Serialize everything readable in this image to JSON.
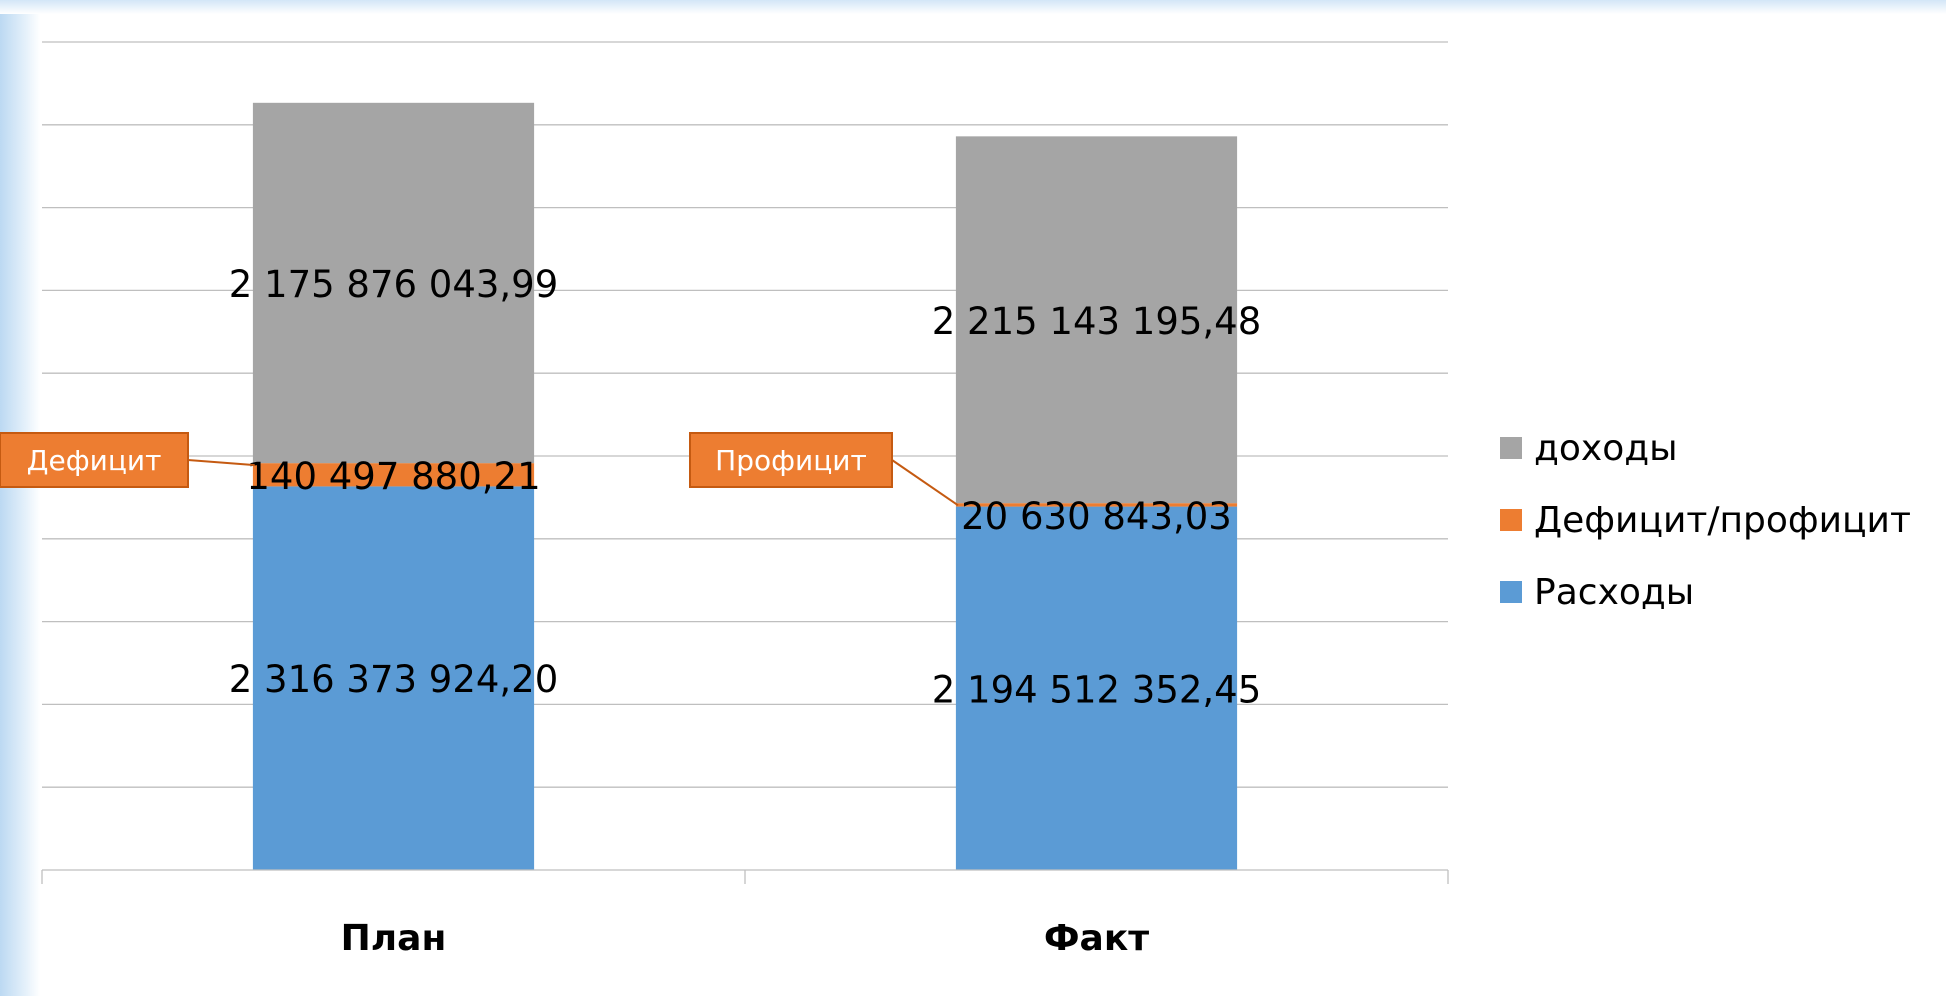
{
  "colors": {
    "expenses": "#5b9bd5",
    "deficit": "#ed7d31",
    "income": "#a5a5a5",
    "grid": "#bfbfbf"
  },
  "chart_data": {
    "type": "bar",
    "stacked": true,
    "categories": [
      "План",
      "Факт"
    ],
    "series": [
      {
        "name": "Расходы",
        "key": "expenses",
        "values": [
          2316373924.2,
          2194512352.45
        ],
        "labels": [
          "2 316 373 924,20",
          "2 194 512 352,45"
        ]
      },
      {
        "name": "Дефицит/профицит",
        "key": "deficit",
        "values": [
          140497880.21,
          20630843.03
        ],
        "labels": [
          "140 497 880,21",
          "20 630 843,03"
        ]
      },
      {
        "name": "доходы",
        "key": "income",
        "values": [
          2175876043.99,
          2215143195.48
        ],
        "labels": [
          "2 175 876 043,99",
          "2 215 143 195,48"
        ]
      }
    ],
    "callouts": [
      "Дефицит",
      "Профицит"
    ],
    "ylim": [
      0,
      5000000000
    ],
    "grid": true,
    "legend_position": "right"
  }
}
